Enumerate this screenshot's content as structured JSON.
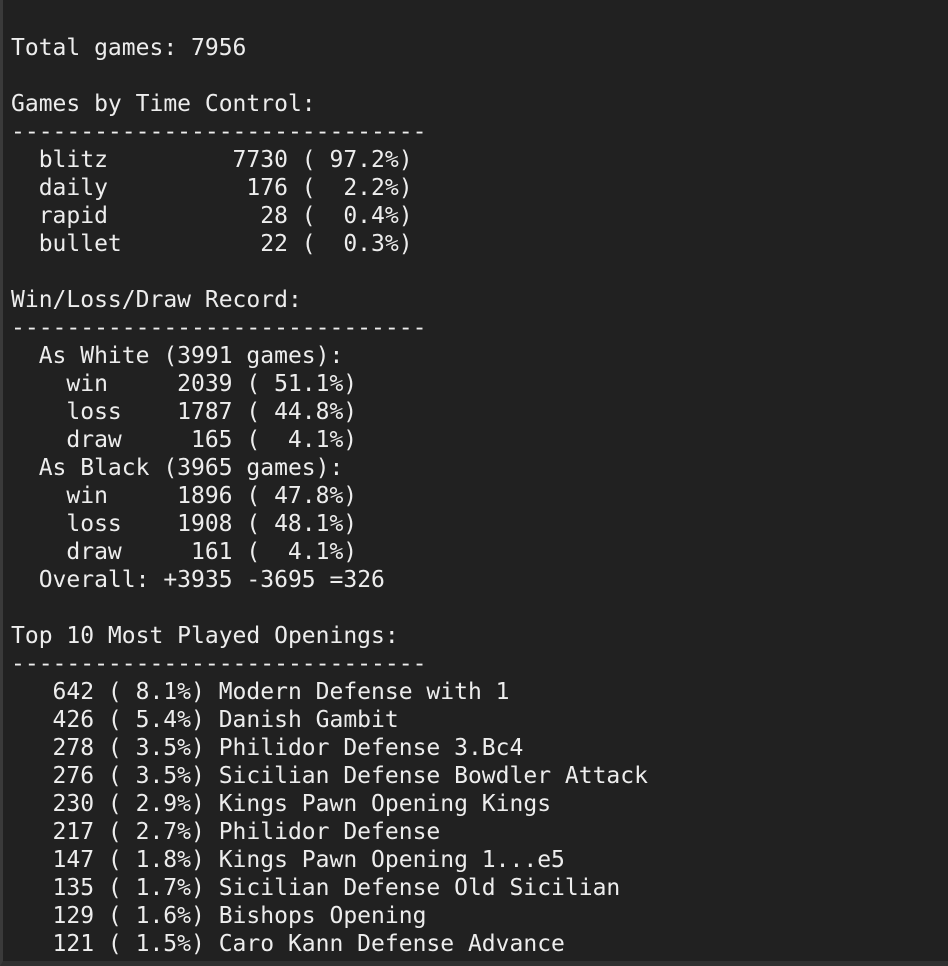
{
  "window": {
    "background": "#212121",
    "edge_left_color": "#3a3a3a",
    "edge_bottom_color": "#303030",
    "text_color": "#ededed"
  },
  "fmt": {
    "divider": "------------------------------",
    "open": " (",
    "close": "%)",
    "games_open": " (",
    "games_close": " games):"
  },
  "summary": {
    "total_label": "Total games:",
    "total": "7956"
  },
  "time_control": {
    "title": "Games by Time Control:",
    "rows": [
      {
        "name": "blitz",
        "count": "7730",
        "pct": "97.2"
      },
      {
        "name": "daily",
        "count": "176",
        "pct": "2.2"
      },
      {
        "name": "rapid",
        "count": "28",
        "pct": "0.4"
      },
      {
        "name": "bullet",
        "count": "22",
        "pct": "0.3"
      }
    ]
  },
  "record": {
    "title": "Win/Loss/Draw Record:",
    "white": {
      "side": "As White",
      "games": "3991",
      "rows": [
        {
          "name": "win",
          "count": "2039",
          "pct": "51.1"
        },
        {
          "name": "loss",
          "count": "1787",
          "pct": "44.8"
        },
        {
          "name": "draw",
          "count": "165",
          "pct": "4.1"
        }
      ]
    },
    "black": {
      "side": "As Black",
      "games": "3965",
      "rows": [
        {
          "name": "win",
          "count": "1896",
          "pct": "47.8"
        },
        {
          "name": "loss",
          "count": "1908",
          "pct": "48.1"
        },
        {
          "name": "draw",
          "count": "161",
          "pct": "4.1"
        }
      ]
    },
    "overall": {
      "label": "Overall:",
      "wins": "+3935",
      "losses": "-3695",
      "draws": "=326"
    }
  },
  "openings": {
    "title": "Top 10 Most Played Openings:",
    "rows": [
      {
        "count": "642",
        "pct": "8.1",
        "name": "Modern Defense with 1"
      },
      {
        "count": "426",
        "pct": "5.4",
        "name": "Danish Gambit"
      },
      {
        "count": "278",
        "pct": "3.5",
        "name": "Philidor Defense 3.Bc4"
      },
      {
        "count": "276",
        "pct": "3.5",
        "name": "Sicilian Defense Bowdler Attack"
      },
      {
        "count": "230",
        "pct": "2.9",
        "name": "Kings Pawn Opening Kings"
      },
      {
        "count": "217",
        "pct": "2.7",
        "name": "Philidor Defense"
      },
      {
        "count": "147",
        "pct": "1.8",
        "name": "Kings Pawn Opening 1...e5"
      },
      {
        "count": "135",
        "pct": "1.7",
        "name": "Sicilian Defense Old Sicilian"
      },
      {
        "count": "129",
        "pct": "1.6",
        "name": "Bishops Opening"
      },
      {
        "count": "121",
        "pct": "1.5",
        "name": "Caro Kann Defense Advance"
      }
    ]
  }
}
